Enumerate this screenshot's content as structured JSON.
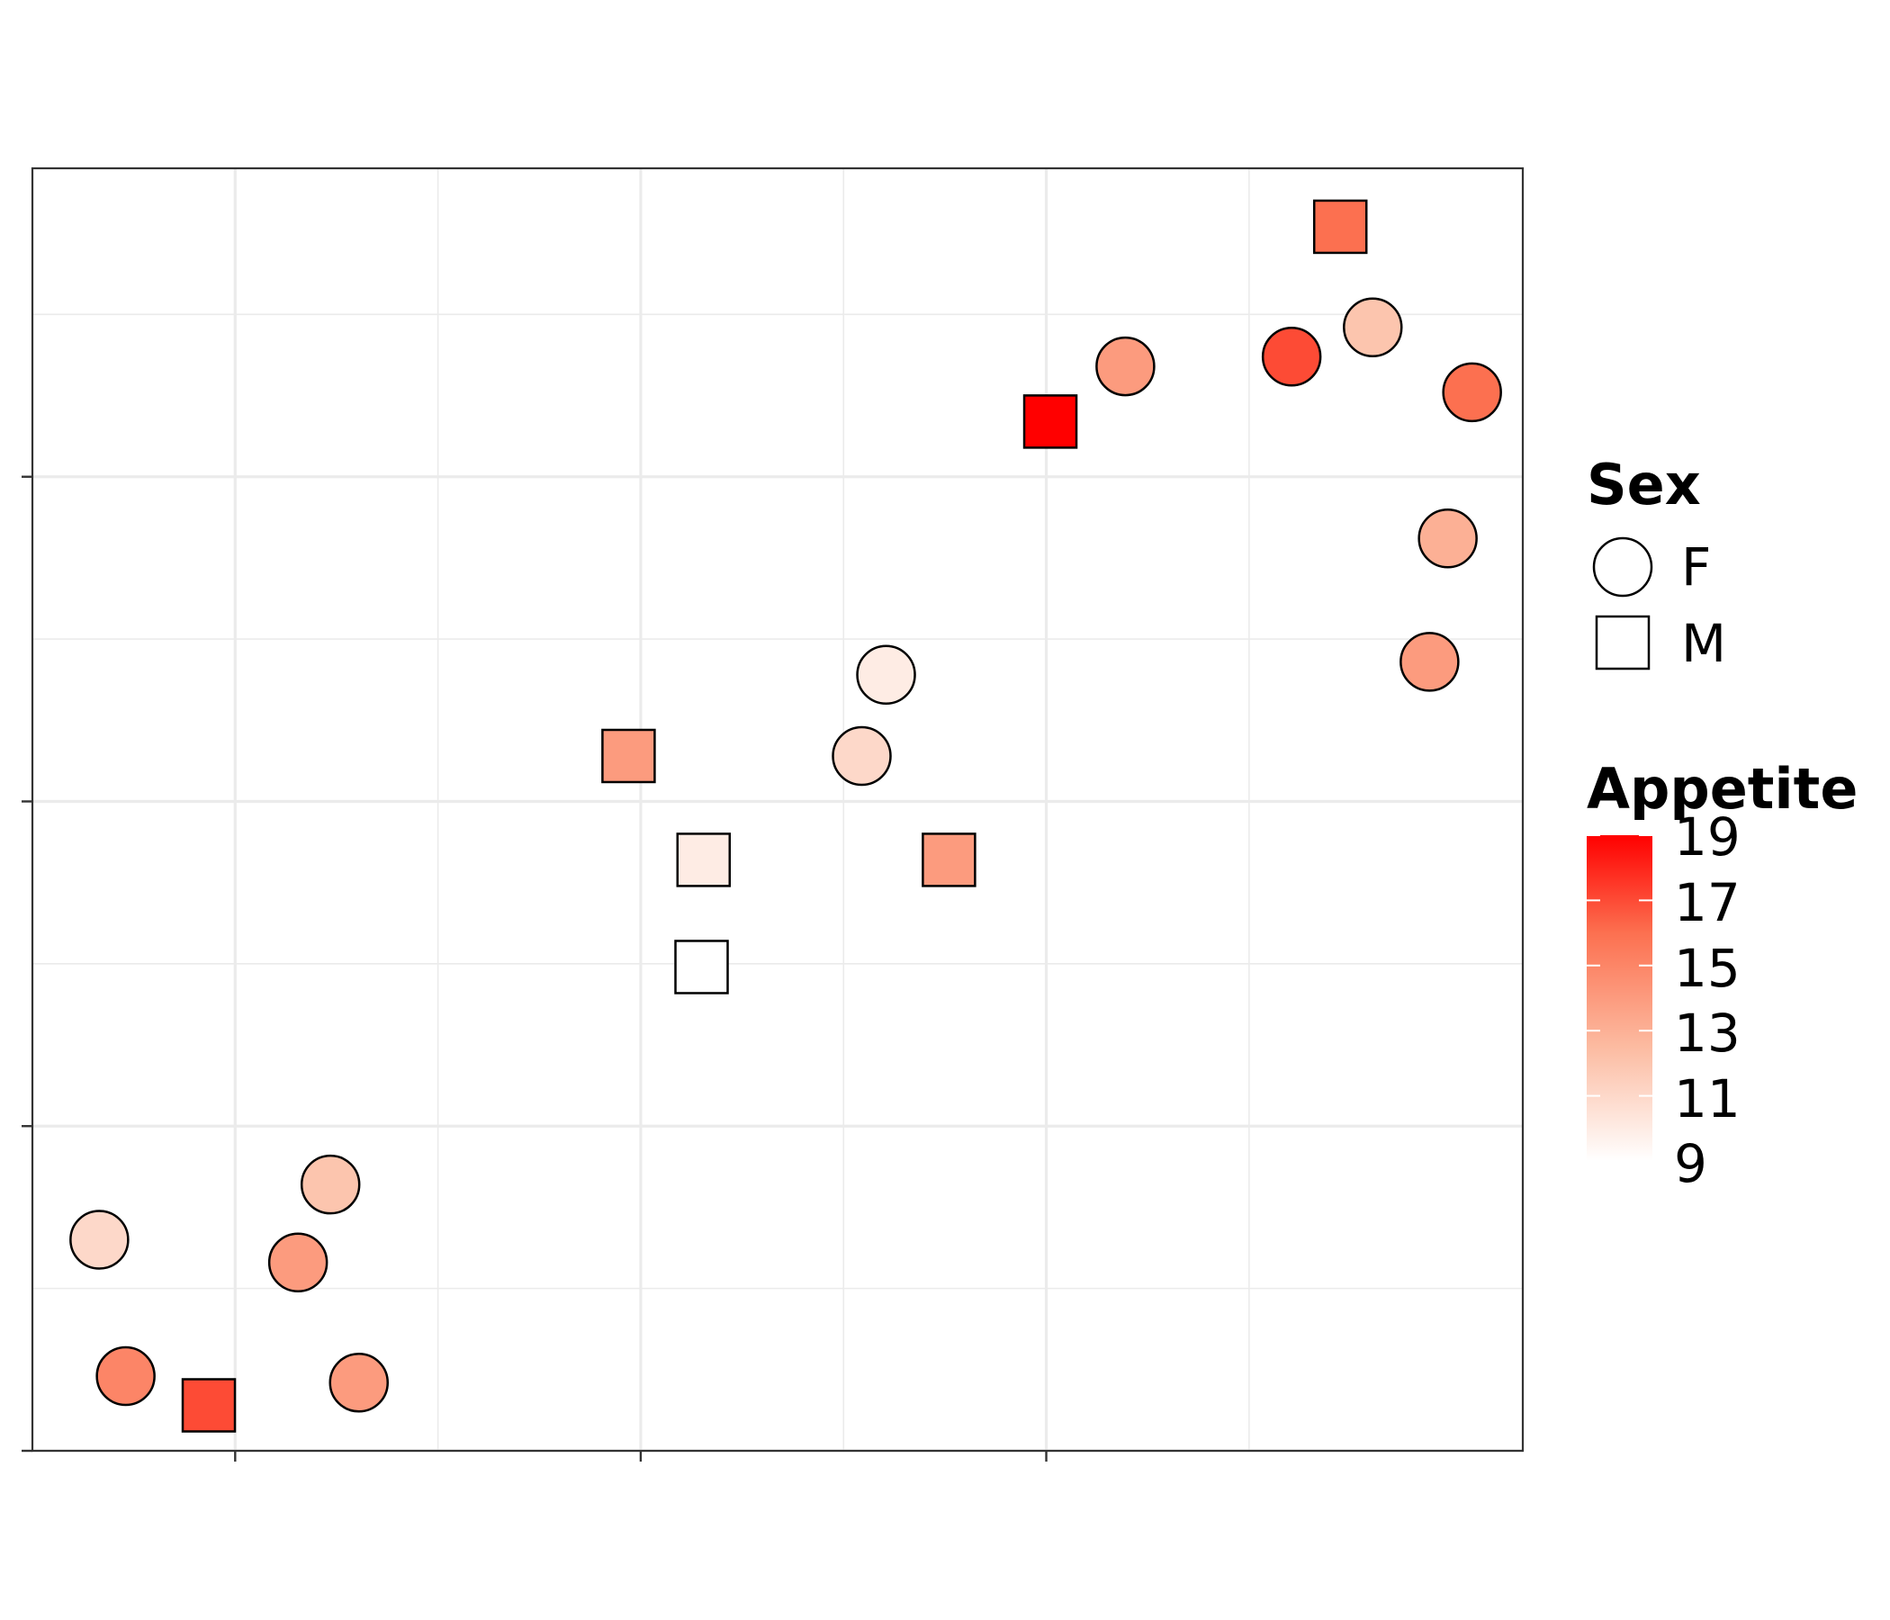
{
  "chart_data": {
    "type": "scatter",
    "x_range": [
      0,
      7.35
    ],
    "y_range": [
      0,
      3.95
    ],
    "x_ticks": [
      1,
      3,
      5
    ],
    "y_ticks": [
      0,
      1,
      2,
      3
    ],
    "grid": true,
    "legend_placement": "right",
    "shape_legend": {
      "title": "Sex",
      "entries": [
        {
          "label": "F",
          "shape": "circle"
        },
        {
          "label": "M",
          "shape": "square"
        }
      ]
    },
    "color_legend": {
      "title": "Appetite",
      "min": 9,
      "max": 19,
      "ticks": [
        "19",
        "17",
        "15",
        "13",
        "11",
        "9"
      ],
      "low_color": "#ffffff",
      "high_color": "#ff0000"
    },
    "points": [
      {
        "x": 0.33,
        "y": 0.65,
        "sex": "F",
        "appetite": 11
      },
      {
        "x": 0.46,
        "y": 0.23,
        "sex": "F",
        "appetite": 15
      },
      {
        "x": 0.87,
        "y": 0.14,
        "sex": "M",
        "appetite": 17
      },
      {
        "x": 1.31,
        "y": 0.58,
        "sex": "F",
        "appetite": 14
      },
      {
        "x": 1.47,
        "y": 0.82,
        "sex": "F",
        "appetite": 12
      },
      {
        "x": 1.61,
        "y": 0.21,
        "sex": "F",
        "appetite": 14
      },
      {
        "x": 2.94,
        "y": 2.14,
        "sex": "M",
        "appetite": 14
      },
      {
        "x": 3.31,
        "y": 1.82,
        "sex": "M",
        "appetite": 10
      },
      {
        "x": 3.3,
        "y": 1.49,
        "sex": "M",
        "appetite": 9
      },
      {
        "x": 4.09,
        "y": 2.14,
        "sex": "F",
        "appetite": 11
      },
      {
        "x": 4.21,
        "y": 2.39,
        "sex": "F",
        "appetite": 10
      },
      {
        "x": 4.52,
        "y": 1.82,
        "sex": "M",
        "appetite": 14
      },
      {
        "x": 5.02,
        "y": 3.17,
        "sex": "M",
        "appetite": 19
      },
      {
        "x": 5.39,
        "y": 3.34,
        "sex": "F",
        "appetite": 14
      },
      {
        "x": 6.21,
        "y": 3.37,
        "sex": "F",
        "appetite": 17
      },
      {
        "x": 6.45,
        "y": 3.77,
        "sex": "M",
        "appetite": 16
      },
      {
        "x": 6.61,
        "y": 3.46,
        "sex": "F",
        "appetite": 12
      },
      {
        "x": 7.1,
        "y": 3.26,
        "sex": "F",
        "appetite": 16
      },
      {
        "x": 6.98,
        "y": 2.81,
        "sex": "F",
        "appetite": 13
      },
      {
        "x": 6.89,
        "y": 2.43,
        "sex": "F",
        "appetite": 14
      }
    ]
  }
}
